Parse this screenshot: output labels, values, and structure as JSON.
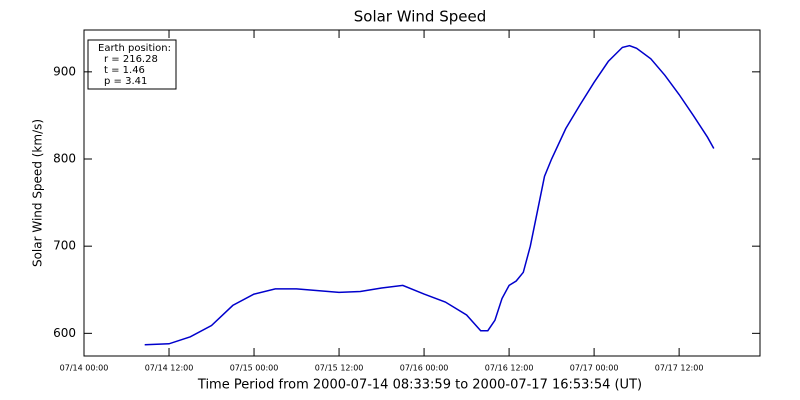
{
  "chart_data": {
    "type": "line",
    "title": "Solar Wind Speed",
    "x_label": "Time Period from 2000-07-14 08:33:59 to 2000-07-17 16:53:54 (UT)",
    "y_label": "Solar Wind Speed (km/s)",
    "annotation": [
      "Earth position:",
      "r = 216.28",
      "t = 1.46",
      "p = 3.41"
    ],
    "x": [
      "07/14 08:34",
      "07/14 12:00",
      "07/14 15:00",
      "07/14 18:00",
      "07/14 21:00",
      "07/15 00:00",
      "07/15 03:00",
      "07/15 06:00",
      "07/15 09:00",
      "07/15 12:00",
      "07/15 15:00",
      "07/15 18:00",
      "07/15 21:00",
      "07/16 00:00",
      "07/16 03:00",
      "07/16 06:00",
      "07/16 08:00",
      "07/16 09:00",
      "07/16 10:00",
      "07/16 11:00",
      "07/16 12:00",
      "07/16 13:00",
      "07/16 14:00",
      "07/16 15:00",
      "07/16 16:00",
      "07/16 17:00",
      "07/16 18:00",
      "07/16 20:00",
      "07/16 22:00",
      "07/17 00:00",
      "07/17 02:00",
      "07/17 04:00",
      "07/17 05:00",
      "07/17 06:00",
      "07/17 08:00",
      "07/17 10:00",
      "07/17 12:00",
      "07/17 14:00",
      "07/17 16:00",
      "07/17 16:54"
    ],
    "series": [
      {
        "name": "Solar Wind Speed",
        "color": "#0000cc",
        "values": [
          587,
          588,
          596,
          609,
          632,
          645,
          651,
          651,
          649,
          647,
          648,
          652,
          655,
          645,
          636,
          621,
          603,
          603,
          615,
          640,
          655,
          660,
          670,
          700,
          740,
          780,
          800,
          835,
          862,
          888,
          912,
          928,
          930,
          927,
          915,
          896,
          874,
          850,
          825,
          812
        ]
      }
    ],
    "xlim": [
      "07/14 00:00",
      "07/17 23:25"
    ],
    "xticks": [
      "07/14 00:00",
      "07/14 12:00",
      "07/15 00:00",
      "07/15 12:00",
      "07/16 00:00",
      "07/16 12:00",
      "07/17 00:00",
      "07/17 12:00"
    ],
    "ylim": [
      574,
      948
    ],
    "yticks": [
      600,
      700,
      800,
      900
    ]
  }
}
